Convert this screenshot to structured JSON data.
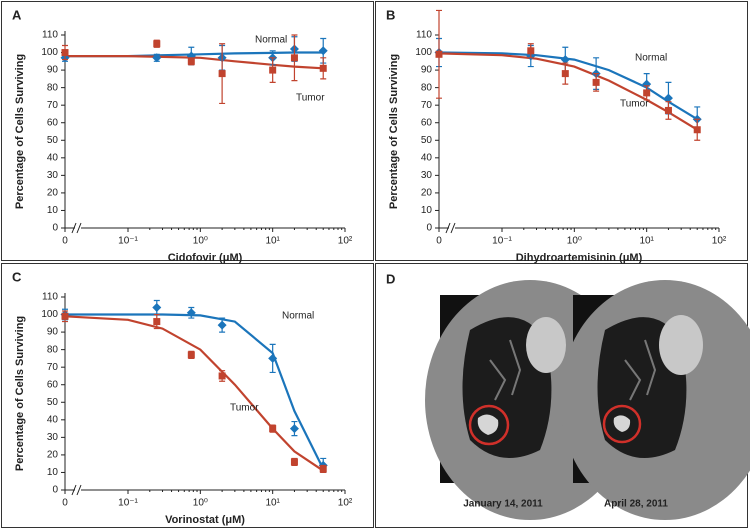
{
  "chart_data": [
    {
      "type": "scatter",
      "panel": "A",
      "xlabel": "Cidofovir (μM)",
      "ylabel": "Percentage of Cells Surviving",
      "xscale": "log",
      "xlim": [
        0,
        100
      ],
      "ylim": [
        0,
        110
      ],
      "xticks": [
        0,
        {
          "value": 0.1,
          "label": "10⁻¹"
        },
        {
          "value": 1,
          "label": "10⁰"
        },
        {
          "value": 10,
          "label": "10¹"
        },
        {
          "value": 100,
          "label": "10²"
        }
      ],
      "yticks": [
        0,
        10,
        20,
        30,
        40,
        50,
        60,
        70,
        80,
        90,
        100,
        110
      ],
      "x": [
        0,
        0.25,
        0.75,
        2,
        10,
        20,
        50
      ],
      "fit_x": [
        0,
        0.1,
        0.3,
        1,
        3,
        10,
        20,
        50
      ],
      "series": [
        {
          "name": "Normal",
          "color": "#1b75bb",
          "marker": "diamond",
          "values": [
            97,
            97,
            98,
            97,
            97,
            102,
            101
          ],
          "errors": [
            2,
            2,
            5,
            7,
            4,
            7,
            7
          ],
          "fit": [
            98,
            98,
            98.5,
            99,
            99.5,
            99.8,
            100,
            100
          ]
        },
        {
          "name": "Tumor",
          "color": "#c1432e",
          "marker": "square",
          "values": [
            100,
            105,
            95,
            88,
            90,
            97,
            91
          ],
          "errors": [
            4,
            2,
            2,
            17,
            7,
            13,
            6
          ],
          "fit": [
            98,
            98,
            97.5,
            97,
            95,
            93,
            92,
            91
          ]
        }
      ]
    },
    {
      "type": "scatter",
      "panel": "B",
      "xlabel": "Dihydroartemisinin (μM)",
      "ylabel": "Percentage of Cells Surviving",
      "xscale": "log",
      "xlim": [
        0,
        100
      ],
      "ylim": [
        0,
        110
      ],
      "xticks": [
        0,
        {
          "value": 0.1,
          "label": "10⁻¹"
        },
        {
          "value": 1,
          "label": "10⁰"
        },
        {
          "value": 10,
          "label": "10¹"
        },
        {
          "value": 100,
          "label": "10²"
        }
      ],
      "yticks": [
        0,
        10,
        20,
        30,
        40,
        50,
        60,
        70,
        80,
        90,
        100,
        110
      ],
      "x": [
        0,
        0.25,
        0.75,
        2,
        10,
        20,
        50
      ],
      "fit_x": [
        0,
        0.1,
        0.3,
        1,
        3,
        10,
        20,
        50
      ],
      "series": [
        {
          "name": "Normal",
          "color": "#1b75bb",
          "marker": "diamond",
          "values": [
            100,
            98,
            96,
            88,
            82,
            74,
            62
          ],
          "errors": [
            8,
            6,
            7,
            9,
            6,
            9,
            7
          ],
          "fit": [
            100,
            99.5,
            98.5,
            96,
            90,
            80,
            72,
            62
          ]
        },
        {
          "name": "Tumor",
          "color": "#c1432e",
          "marker": "square",
          "values": [
            99,
            101,
            88,
            83,
            77,
            67,
            56
          ],
          "errors": [
            25,
            4,
            6,
            5,
            4,
            5,
            6
          ],
          "fit": [
            99.5,
            98.5,
            96.5,
            92,
            84,
            73,
            66,
            56
          ]
        }
      ]
    },
    {
      "type": "scatter",
      "panel": "C",
      "xlabel": "Vorinostat (μM)",
      "ylabel": "Percentage of Cells Surviving",
      "xscale": "log",
      "xlim": [
        0,
        100
      ],
      "ylim": [
        0,
        110
      ],
      "xticks": [
        0,
        {
          "value": 0.1,
          "label": "10⁻¹"
        },
        {
          "value": 1,
          "label": "10⁰"
        },
        {
          "value": 10,
          "label": "10¹"
        },
        {
          "value": 100,
          "label": "10²"
        }
      ],
      "yticks": [
        0,
        10,
        20,
        30,
        40,
        50,
        60,
        70,
        80,
        90,
        100,
        110
      ],
      "x": [
        0,
        0.25,
        0.75,
        2,
        10,
        20,
        50
      ],
      "fit_x": [
        0,
        0.1,
        0.3,
        1,
        3,
        10,
        20,
        50
      ],
      "series": [
        {
          "name": "Normal",
          "color": "#1b75bb",
          "marker": "diamond",
          "values": [
            100,
            104,
            101,
            94,
            75,
            35,
            14
          ],
          "errors": [
            3,
            4,
            3,
            4,
            8,
            4,
            4
          ],
          "fit": [
            100,
            100,
            100,
            99.5,
            96,
            78,
            45,
            12
          ]
        },
        {
          "name": "Tumor",
          "color": "#c1432e",
          "marker": "square",
          "values": [
            99,
            96,
            77,
            65,
            35,
            16,
            12
          ],
          "errors": [
            3,
            4,
            2,
            3,
            2,
            2,
            2
          ],
          "fit": [
            99,
            97,
            92,
            80,
            60,
            35,
            22,
            11
          ]
        }
      ]
    }
  ],
  "panel_d": {
    "label": "D",
    "captions": [
      "January 14, 2011",
      "April 28, 2011"
    ]
  }
}
